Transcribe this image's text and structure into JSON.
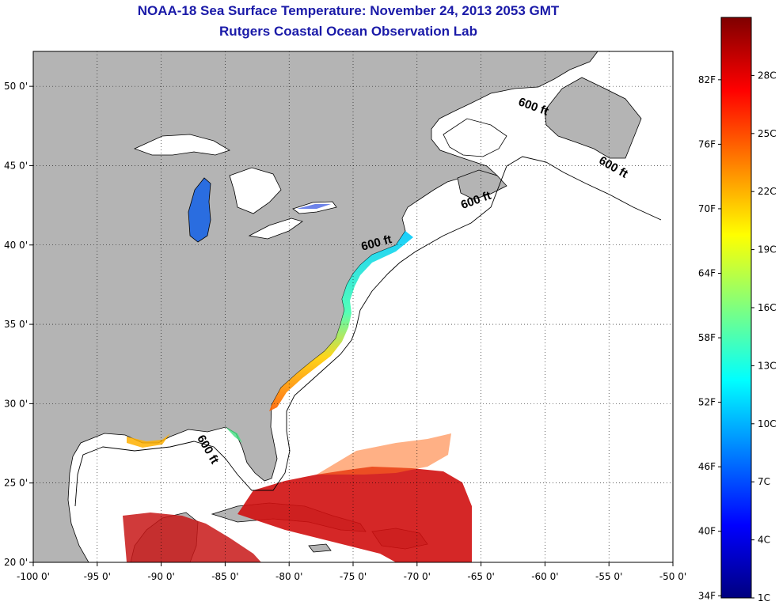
{
  "title": {
    "line1": "NOAA-18 Sea Surface Temperature:  November 24, 2013 2053 GMT",
    "line2": "Rutgers Coastal Ocean Observation Lab"
  },
  "map": {
    "lon_range": [
      -100,
      -50
    ],
    "lat_range": [
      20,
      52.2
    ],
    "lon_ticks": [
      {
        "value": -100,
        "label": "-100 0'"
      },
      {
        "value": -95,
        "label": "-95 0'"
      },
      {
        "value": -90,
        "label": "-90 0'"
      },
      {
        "value": -85,
        "label": "-85 0'"
      },
      {
        "value": -80,
        "label": "-80 0'"
      },
      {
        "value": -75,
        "label": "-75 0'"
      },
      {
        "value": -70,
        "label": "-70 0'"
      },
      {
        "value": -65,
        "label": "-65 0'"
      },
      {
        "value": -60,
        "label": "-60 0'"
      },
      {
        "value": -55,
        "label": "-55 0'"
      },
      {
        "value": -50,
        "label": "-50 0'"
      }
    ],
    "lat_ticks": [
      {
        "value": 20,
        "label": "20 0'"
      },
      {
        "value": 25,
        "label": "25 0'"
      },
      {
        "value": 30,
        "label": "30 0'"
      },
      {
        "value": 35,
        "label": "35 0'"
      },
      {
        "value": 40,
        "label": "40 0'"
      },
      {
        "value": 45,
        "label": "45 0'"
      },
      {
        "value": 50,
        "label": "50 0'"
      }
    ],
    "grid": "dotted",
    "land_color": "#b4b4b4",
    "ocean_color": "#ffffff",
    "contour_labels": [
      {
        "text": "600 ft",
        "lon": -61.0,
        "lat": 48.5,
        "rotate": 20
      },
      {
        "text": "600 ft",
        "lon": -54.8,
        "lat": 44.7,
        "rotate": 30
      },
      {
        "text": "600 ft",
        "lon": -65.3,
        "lat": 42.6,
        "rotate": -20
      },
      {
        "text": "600 ft",
        "lon": -73.1,
        "lat": 39.9,
        "rotate": -15
      },
      {
        "text": "600 ft",
        "lon": -86.6,
        "lat": 27.0,
        "rotate": 60
      }
    ]
  },
  "colorbar": {
    "colors": [
      "#00007f",
      "#0000ff",
      "#007fff",
      "#00ffff",
      "#7fff7f",
      "#ffff00",
      "#ff7f00",
      "#ff0000",
      "#7f0000"
    ],
    "temp_c_range": [
      1,
      31
    ],
    "fahrenheit_labels": [
      {
        "value": 34,
        "label": "34F"
      },
      {
        "value": 40,
        "label": "40F"
      },
      {
        "value": 46,
        "label": "46F"
      },
      {
        "value": 52,
        "label": "52F"
      },
      {
        "value": 58,
        "label": "58F"
      },
      {
        "value": 64,
        "label": "64F"
      },
      {
        "value": 70,
        "label": "70F"
      },
      {
        "value": 76,
        "label": "76F"
      },
      {
        "value": 82,
        "label": "82F"
      }
    ],
    "celsius_labels": [
      {
        "value": 1,
        "label": "1C"
      },
      {
        "value": 4,
        "label": "4C"
      },
      {
        "value": 7,
        "label": "7C"
      },
      {
        "value": 10,
        "label": "10C"
      },
      {
        "value": 13,
        "label": "13C"
      },
      {
        "value": 16,
        "label": "16C"
      },
      {
        "value": 19,
        "label": "19C"
      },
      {
        "value": 22,
        "label": "22C"
      },
      {
        "value": 25,
        "label": "25C"
      },
      {
        "value": 28,
        "label": "28C"
      }
    ]
  }
}
